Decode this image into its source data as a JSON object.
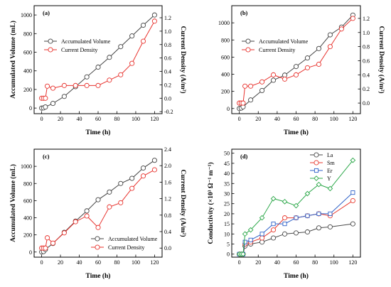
{
  "colors": {
    "volume": "#454545",
    "density": "#e8332e",
    "La": "#4a4a4a",
    "Sm": "#e83a2f",
    "Er": "#2f62c8",
    "Y": "#2da84a"
  },
  "chart_data": [
    {
      "type": "line",
      "panel_label": "(a)",
      "xlabel": "Time (h)",
      "ylabel": "Accumulated Volume (mL)",
      "y2label": "Current Density (A/m²)",
      "xlim": [
        -8,
        128
      ],
      "xticks": [
        0,
        20,
        40,
        60,
        80,
        100,
        120
      ],
      "ylim": [
        -60,
        1100
      ],
      "yticks": [
        0,
        200,
        400,
        600,
        800,
        1000
      ],
      "y2lim": [
        -0.23,
        1.38
      ],
      "y2ticks": [
        "-0.2",
        "0.0",
        "0.2",
        "0.4",
        "0.6",
        "0.8",
        "1.0",
        "1.2"
      ],
      "legend_position": "center-left",
      "series": [
        {
          "name": "Accumulated Volume",
          "axis": "left",
          "color_key": "volume",
          "x": [
            0,
            2,
            4,
            12,
            24,
            36,
            48,
            60,
            72,
            84,
            96,
            108,
            120
          ],
          "y": [
            0,
            2,
            12,
            50,
            125,
            230,
            335,
            440,
            545,
            660,
            775,
            890,
            1000
          ]
        },
        {
          "name": "Current Density",
          "axis": "right",
          "color_key": "density",
          "x": [
            0,
            2,
            4,
            6,
            12,
            24,
            36,
            48,
            60,
            72,
            84,
            96,
            108,
            120
          ],
          "y": [
            0.0,
            0.0,
            0.0,
            0.18,
            0.15,
            0.19,
            0.19,
            0.19,
            0.19,
            0.27,
            0.35,
            0.52,
            0.85,
            1.15
          ]
        }
      ]
    },
    {
      "type": "line",
      "panel_label": "(b)",
      "xlabel": "Time (h)",
      "ylabel": "",
      "y2label": "Current Density (A/m²)",
      "xlim": [
        -8,
        128
      ],
      "xticks": [
        0,
        20,
        40,
        60,
        80,
        100,
        120
      ],
      "ylim": [
        -60,
        1200
      ],
      "yticks": [
        0,
        200,
        400,
        600,
        800,
        1000
      ],
      "y2lim": [
        -0.15,
        1.38
      ],
      "y2ticks": [
        "0.0",
        "0.2",
        "0.4",
        "0.6",
        "0.8",
        "1.0",
        "1.2"
      ],
      "legend_position": "center-left",
      "series": [
        {
          "name": "Accumulated Volume",
          "axis": "left",
          "color_key": "volume",
          "x": [
            0,
            2,
            4,
            12,
            24,
            36,
            48,
            60,
            72,
            84,
            96,
            108,
            120
          ],
          "y": [
            0,
            5,
            20,
            100,
            210,
            330,
            390,
            490,
            590,
            700,
            860,
            950,
            1090
          ]
        },
        {
          "name": "Current Density",
          "axis": "right",
          "color_key": "density",
          "x": [
            0,
            2,
            4,
            6,
            12,
            24,
            36,
            48,
            60,
            72,
            84,
            96,
            108,
            120
          ],
          "y": [
            0.0,
            0.0,
            0.0,
            0.24,
            0.24,
            0.3,
            0.4,
            0.34,
            0.4,
            0.5,
            0.55,
            0.8,
            1.05,
            1.2
          ]
        }
      ]
    },
    {
      "type": "line",
      "panel_label": "(c)",
      "xlabel": "Time (h)",
      "ylabel": "Accumulated Volume (mL)",
      "y2label": "Current Density (A/m²)",
      "xlim": [
        -8,
        128
      ],
      "xticks": [
        0,
        20,
        40,
        60,
        80,
        100,
        120
      ],
      "ylim": [
        -60,
        1200
      ],
      "yticks": [
        0,
        200,
        400,
        600,
        800,
        1000
      ],
      "y2lim": [
        -0.22,
        2.4
      ],
      "y2ticks": [
        "0.0",
        "0.4",
        "0.8",
        "1.2",
        "1.6",
        "2.0",
        "2.4"
      ],
      "legend_position": "bottom-right",
      "series": [
        {
          "name": "Accumulated Volume",
          "axis": "left",
          "color_key": "volume",
          "x": [
            0,
            2,
            4,
            12,
            24,
            36,
            48,
            60,
            72,
            84,
            96,
            108,
            120
          ],
          "y": [
            0,
            5,
            30,
            100,
            230,
            360,
            480,
            610,
            700,
            800,
            860,
            980,
            1070
          ]
        },
        {
          "name": "Current Density",
          "axis": "right",
          "color_key": "density",
          "x": [
            0,
            2,
            4,
            6,
            12,
            24,
            36,
            48,
            60,
            72,
            84,
            96,
            108,
            120
          ],
          "y": [
            0.0,
            0.0,
            0.0,
            0.25,
            0.12,
            0.37,
            0.64,
            0.78,
            0.5,
            1.0,
            1.1,
            1.45,
            1.75,
            1.9
          ]
        }
      ]
    },
    {
      "type": "line",
      "panel_label": "(d)",
      "xlabel": "Time (h)",
      "ylabel": "Conductivity (×10³ Ω⁻¹ m⁻¹)",
      "xlim": [
        -8,
        128
      ],
      "xticks": [
        0,
        20,
        40,
        60,
        80,
        100,
        120
      ],
      "ylim": [
        -1.5,
        52
      ],
      "yticks": [
        0,
        5,
        10,
        15,
        20,
        25,
        30,
        35,
        40,
        45,
        50
      ],
      "legend_position": "top-left",
      "series": [
        {
          "name": "La",
          "color_key": "La",
          "x": [
            0,
            2,
            4,
            6,
            12,
            24,
            36,
            48,
            60,
            72,
            84,
            96,
            120
          ],
          "y": [
            0,
            0,
            0,
            4,
            5,
            6,
            8,
            10,
            10.5,
            11,
            13,
            13.5,
            15
          ]
        },
        {
          "name": "Sm",
          "color_key": "Sm",
          "x": [
            0,
            2,
            4,
            6,
            12,
            24,
            36,
            48,
            60,
            72,
            84,
            96,
            120
          ],
          "y": [
            0,
            0,
            0,
            5,
            6,
            8,
            12,
            18,
            18,
            19,
            20,
            19,
            26.5
          ]
        },
        {
          "name": "Er",
          "color_key": "Er",
          "x": [
            0,
            2,
            4,
            6,
            12,
            24,
            36,
            48,
            60,
            72,
            84,
            96,
            120
          ],
          "y": [
            0,
            0,
            0,
            6,
            7,
            10,
            15,
            15,
            18,
            19,
            20,
            20,
            30.5
          ]
        },
        {
          "name": "Y",
          "color_key": "Y",
          "x": [
            0,
            2,
            4,
            6,
            12,
            24,
            36,
            48,
            60,
            72,
            84,
            96,
            120
          ],
          "y": [
            0,
            0,
            0,
            10,
            12,
            18,
            27.5,
            26,
            24,
            30,
            34.5,
            32.5,
            46.5
          ]
        }
      ]
    }
  ]
}
